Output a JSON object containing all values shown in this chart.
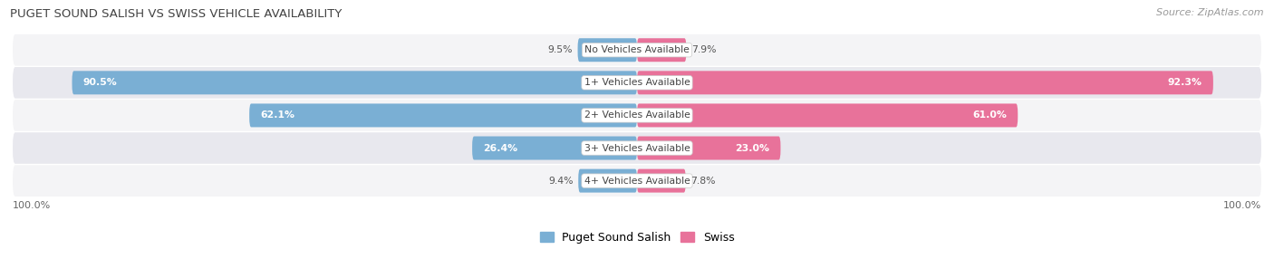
{
  "title": "PUGET SOUND SALISH VS SWISS VEHICLE AVAILABILITY",
  "source": "Source: ZipAtlas.com",
  "categories": [
    "No Vehicles Available",
    "1+ Vehicles Available",
    "2+ Vehicles Available",
    "3+ Vehicles Available",
    "4+ Vehicles Available"
  ],
  "salish_values": [
    9.5,
    90.5,
    62.1,
    26.4,
    9.4
  ],
  "swiss_values": [
    7.9,
    92.3,
    61.0,
    23.0,
    7.8
  ],
  "salish_color": "#7aafd4",
  "swiss_color": "#e8729a",
  "salish_color_light": "#aecde6",
  "swiss_color_light": "#f0a8bf",
  "salish_label": "Puget Sound Salish",
  "swiss_label": "Swiss",
  "bar_height": 0.72,
  "row_bg_light": "#f4f4f6",
  "row_bg_dark": "#e8e8ee",
  "axis_label_left": "100.0%",
  "axis_label_right": "100.0%",
  "background_color": "#ffffff",
  "max_value": 100.0,
  "label_threshold": 15.0
}
